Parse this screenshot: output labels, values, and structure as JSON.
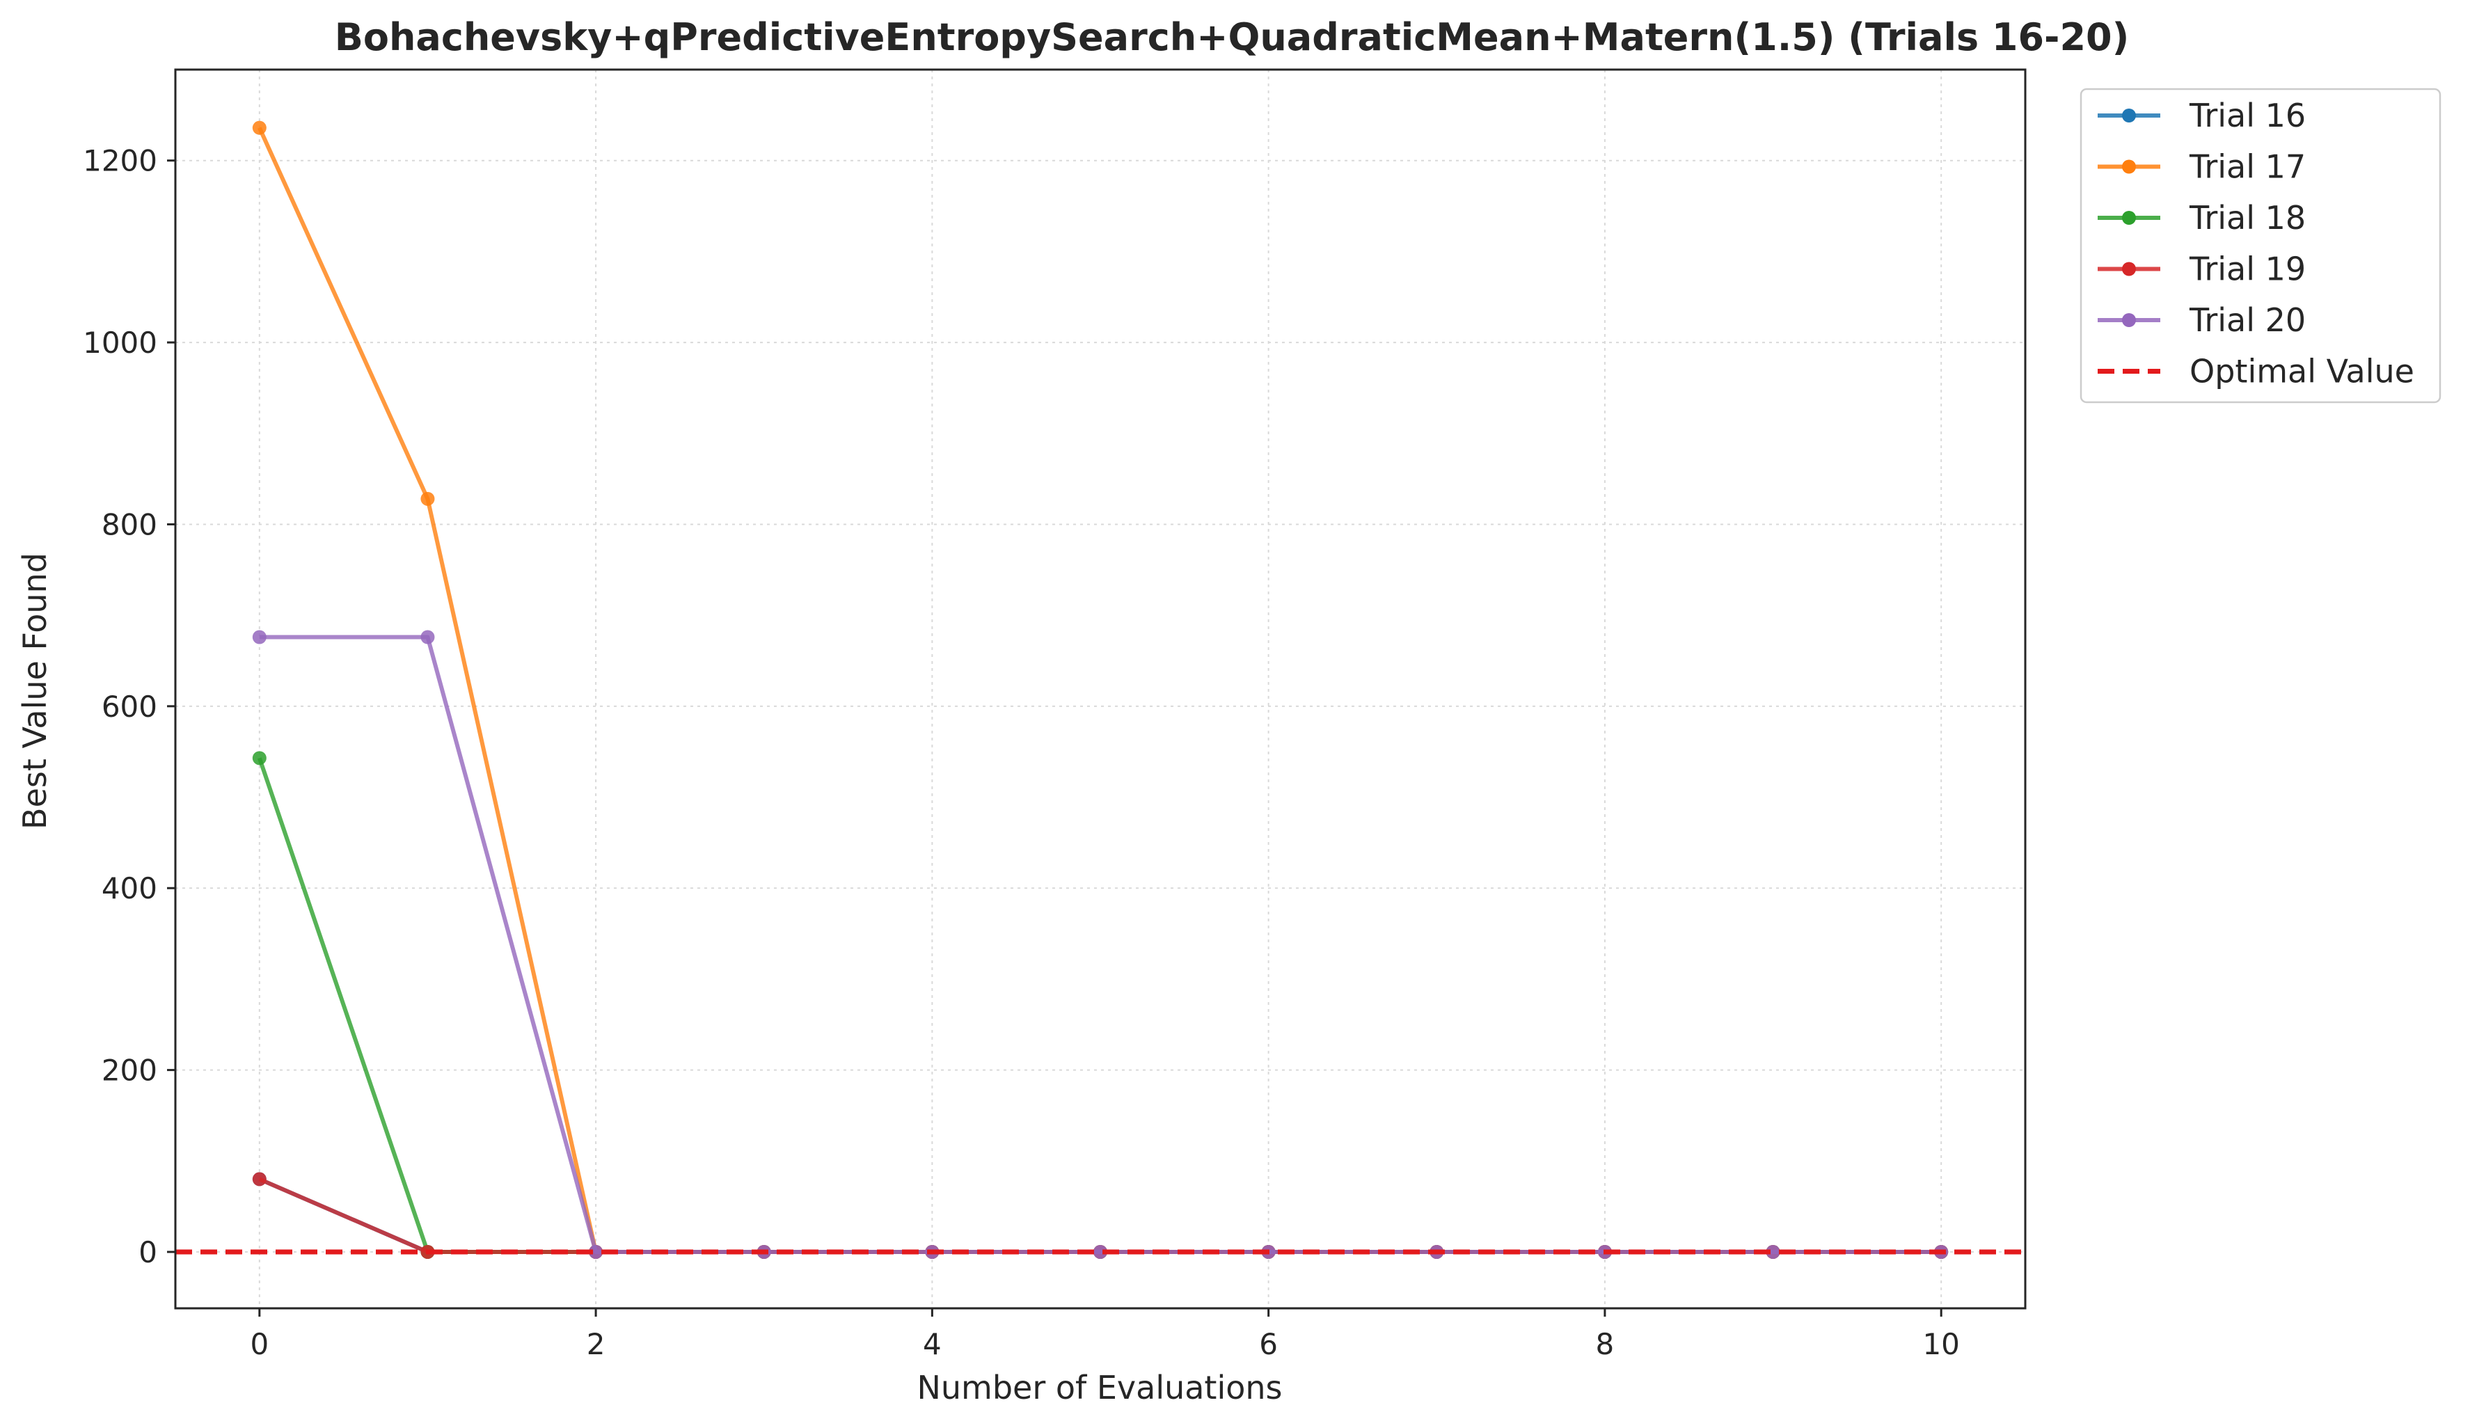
{
  "chart_data": {
    "type": "line",
    "title": "Bohachevsky+qPredictiveEntropySearch+QuadraticMean+Matern(1.5) (Trials 16-20)",
    "xlabel": "Number of Evaluations",
    "ylabel": "Best Value Found",
    "xlim": [
      -0.5,
      10.5
    ],
    "ylim": [
      -62,
      1300
    ],
    "xticks": [
      0,
      2,
      4,
      6,
      8,
      10
    ],
    "yticks": [
      0,
      200,
      400,
      600,
      800,
      1000,
      1200
    ],
    "grid": true,
    "legend_position": "outside-top-right",
    "x": [
      0,
      1,
      2,
      3,
      4,
      5,
      6,
      7,
      8,
      9,
      10
    ],
    "series": [
      {
        "name": "Trial 16",
        "color": "#1f77b4",
        "values": [
          80,
          0,
          0,
          0,
          0,
          0,
          0,
          0,
          0,
          0,
          0
        ]
      },
      {
        "name": "Trial 17",
        "color": "#ff7f0e",
        "values": [
          1236,
          828,
          0,
          0,
          0,
          0,
          0,
          0,
          0,
          0,
          0
        ]
      },
      {
        "name": "Trial 18",
        "color": "#2ca02c",
        "values": [
          543,
          0,
          0,
          0,
          0,
          0,
          0,
          0,
          0,
          0,
          0
        ]
      },
      {
        "name": "Trial 19",
        "color": "#d62728",
        "values": [
          80,
          0,
          0,
          0,
          0,
          0,
          0,
          0,
          0,
          0,
          0
        ]
      },
      {
        "name": "Trial 20",
        "color": "#9467bd",
        "values": [
          676,
          676,
          0,
          0,
          0,
          0,
          0,
          0,
          0,
          0,
          0
        ]
      }
    ],
    "reference_line": {
      "name": "Optimal Value",
      "y": 0,
      "color": "#e31a1c",
      "style": "dashed"
    }
  }
}
